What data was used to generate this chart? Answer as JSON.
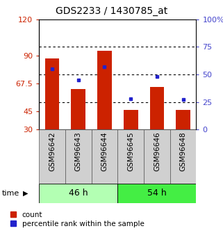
{
  "title": "GDS2233 / 1430785_at",
  "categories": [
    "GSM96642",
    "GSM96643",
    "GSM96644",
    "GSM96645",
    "GSM96646",
    "GSM96648"
  ],
  "count_values": [
    88,
    63,
    94,
    46,
    65,
    46
  ],
  "percentile_values": [
    55,
    45,
    57,
    28,
    48,
    27
  ],
  "bar_bottom": 30,
  "ylim_left": [
    30,
    120
  ],
  "ylim_right": [
    0,
    100
  ],
  "left_ticks": [
    30,
    45,
    67.5,
    90,
    120
  ],
  "left_tick_labels": [
    "30",
    "45",
    "67.5",
    "90",
    "120"
  ],
  "right_ticks": [
    0,
    25,
    50,
    75,
    100
  ],
  "right_tick_labels": [
    "0",
    "25",
    "50",
    "75",
    "100%"
  ],
  "group_labels": [
    "46 h",
    "54 h"
  ],
  "group_ranges": [
    [
      0,
      3
    ],
    [
      3,
      6
    ]
  ],
  "group_colors": [
    "#b3ffb3",
    "#44ee44"
  ],
  "bar_color": "#cc2200",
  "marker_color": "#2222cc",
  "legend_count_label": "count",
  "legend_percentile_label": "percentile rank within the sample",
  "time_label": "time",
  "left_tick_color": "#cc2200",
  "right_tick_color": "#4444cc",
  "background_color": "#ffffff",
  "bar_width": 0.55,
  "xlabel_fontsize": 7.5,
  "tick_fontsize": 8,
  "title_fontsize": 10
}
